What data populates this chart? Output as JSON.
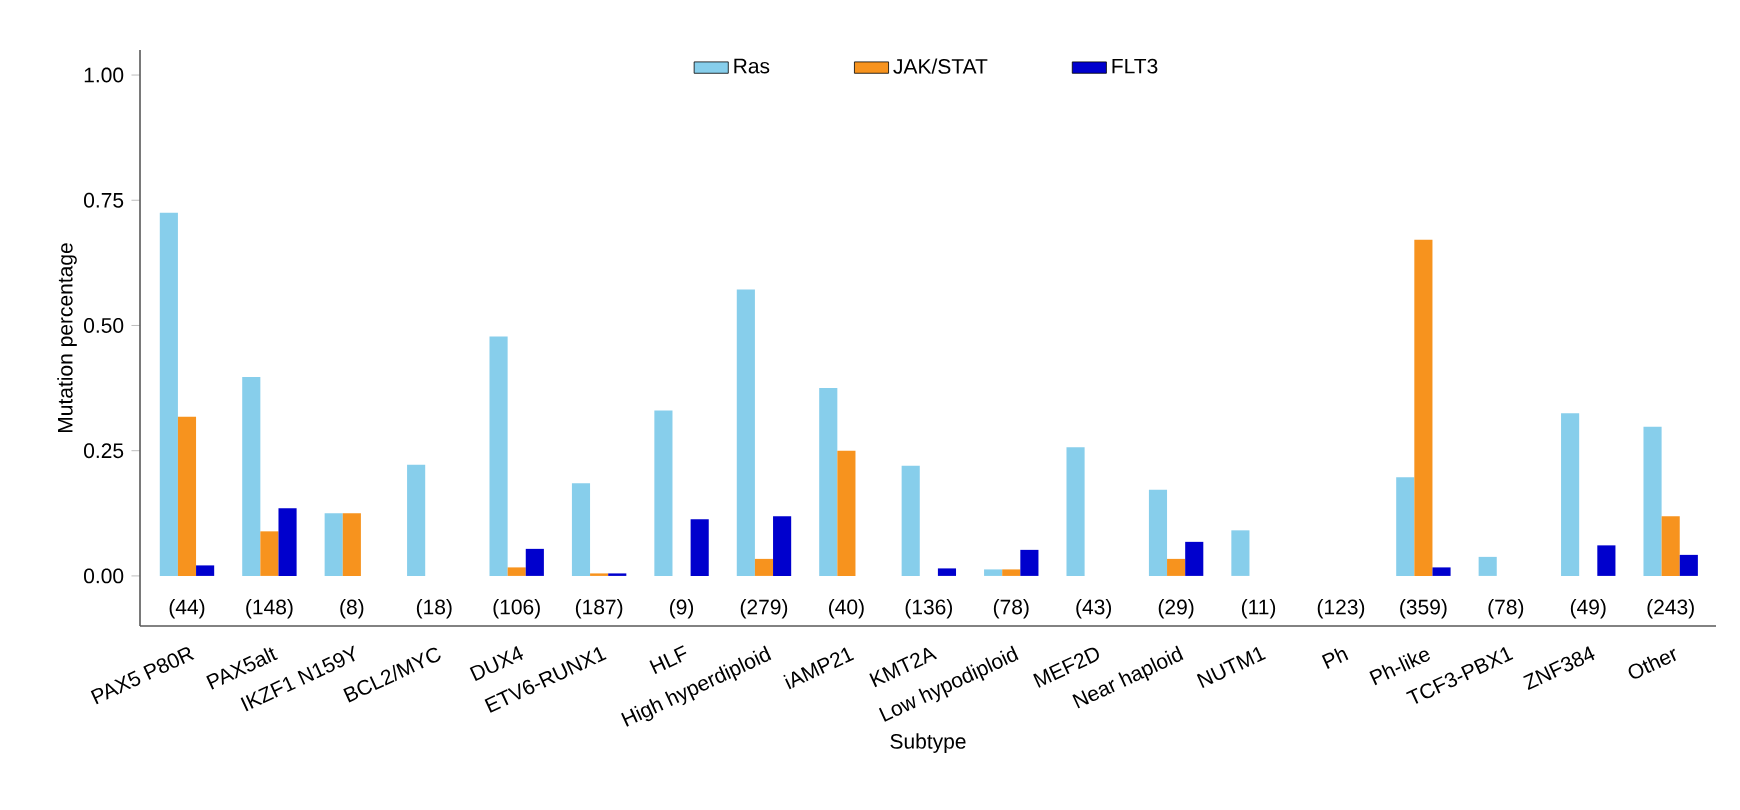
{
  "chart_data": {
    "type": "bar",
    "xlabel": "Subtype",
    "ylabel": "Mutation percentage",
    "categories": [
      "PAX5 P80R",
      "PAX5alt",
      "IKZF1 N159Y",
      "BCL2/MYC",
      "DUX4",
      "ETV6-RUNX1",
      "HLF",
      "High hyperdiploid",
      "iAMP21",
      "KMT2A",
      "Low hypodiploid",
      "MEF2D",
      "Near haploid",
      "NUTM1",
      "Ph",
      "Ph-like",
      "TCF3-PBX1",
      "ZNF384",
      "Other"
    ],
    "series": [
      {
        "name": "Ras",
        "color": "#87ceeb",
        "values": [
          0.725,
          0.397,
          0.125,
          0.222,
          0.478,
          0.185,
          0.33,
          0.572,
          0.375,
          0.22,
          0.013,
          0.257,
          0.172,
          0.091,
          0,
          0.197,
          0.038,
          0.325,
          0.298
        ]
      },
      {
        "name": "JAK/STAT",
        "color": "#f7931e",
        "values": [
          0.318,
          0.089,
          0.125,
          0,
          0.017,
          0.005,
          0,
          0.034,
          0.25,
          0,
          0.013,
          0,
          0.034,
          0,
          0,
          0.671,
          0,
          0,
          0.119
        ]
      },
      {
        "name": "FLT3",
        "color": "#0000cd",
        "values": [
          0.021,
          0.135,
          0,
          0,
          0.054,
          0.005,
          0.113,
          0.119,
          0,
          0.015,
          0.052,
          0,
          0.068,
          0,
          0,
          0.017,
          0,
          0.061,
          0.042
        ]
      }
    ],
    "ylim": [
      -0.1,
      1.05
    ],
    "yticks": [
      {
        "value": 0,
        "label": "0.00"
      },
      {
        "value": 0.25,
        "label": "0.25"
      },
      {
        "value": 0.5,
        "label": "0.50"
      },
      {
        "value": 0.75,
        "label": "0.75"
      },
      {
        "value": 1,
        "label": "1.00"
      }
    ],
    "legend": "top",
    "grid": false,
    "annotations": [
      "(44)",
      "(148)",
      "(8)",
      "(18)",
      "(106)",
      "(187)",
      "(9)",
      "(279)",
      "(40)",
      "(136)",
      "(78)",
      "(43)",
      "(29)",
      "(11)",
      "(123)",
      "(359)",
      "(78)",
      "(49)",
      "(243)"
    ]
  }
}
